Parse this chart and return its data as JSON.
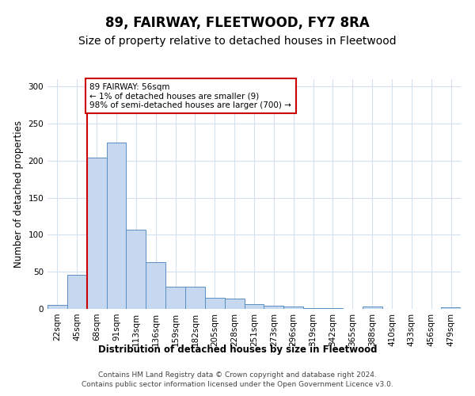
{
  "title": "89, FAIRWAY, FLEETWOOD, FY7 8RA",
  "subtitle": "Size of property relative to detached houses in Fleetwood",
  "xlabel": "Distribution of detached houses by size in Fleetwood",
  "ylabel": "Number of detached properties",
  "categories": [
    "22sqm",
    "45sqm",
    "68sqm",
    "91sqm",
    "113sqm",
    "136sqm",
    "159sqm",
    "182sqm",
    "205sqm",
    "228sqm",
    "251sqm",
    "273sqm",
    "296sqm",
    "319sqm",
    "342sqm",
    "365sqm",
    "388sqm",
    "410sqm",
    "433sqm",
    "456sqm",
    "479sqm"
  ],
  "values": [
    5,
    46,
    204,
    224,
    107,
    63,
    30,
    30,
    15,
    14,
    6,
    4,
    3,
    1,
    1,
    0,
    3,
    0,
    0,
    0,
    2
  ],
  "bar_color": "#c5d8f0",
  "bar_edge_color": "#5a8fc3",
  "ylim": [
    0,
    310
  ],
  "yticks": [
    0,
    50,
    100,
    150,
    200,
    250,
    300
  ],
  "annotation_text": "89 FAIRWAY: 56sqm\n← 1% of detached houses are smaller (9)\n98% of semi-detached houses are larger (700) →",
  "annotation_box_color": "#ffffff",
  "annotation_box_edge_color": "#cc0000",
  "redline_x": 1.5,
  "footer_line1": "Contains HM Land Registry data © Crown copyright and database right 2024.",
  "footer_line2": "Contains public sector information licensed under the Open Government Licence v3.0.",
  "grid_color": "#d4dff0",
  "title_fontsize": 12,
  "subtitle_fontsize": 10,
  "axis_label_fontsize": 8.5,
  "tick_fontsize": 7.5,
  "footer_fontsize": 6.5
}
